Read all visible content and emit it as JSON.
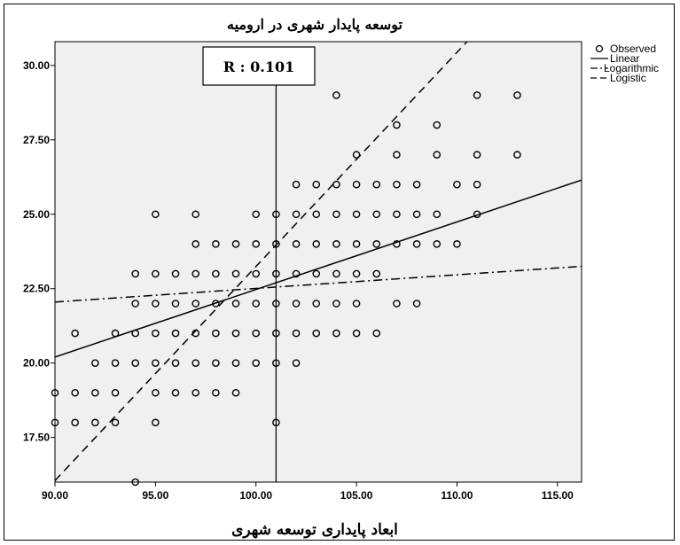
{
  "chart_data": {
    "type": "scatter",
    "title": "توسعه پایدار شهری در ارومیه",
    "xlabel": "ابعاد پایداری توسعه شهری",
    "ylabel": "",
    "xlim": [
      90,
      116.2
    ],
    "ylim": [
      16,
      30.8
    ],
    "x_ticks": [
      "90.00",
      "95.00",
      "100.00",
      "105.00",
      "110.00",
      "115.00"
    ],
    "y_ticks": [
      "17.50",
      "20.00",
      "22.50",
      "25.00",
      "27.50",
      "30.00"
    ],
    "grid": false,
    "background": "#f0f0f0",
    "annotation": {
      "text": "R : 0.101",
      "x": 101
    },
    "legend": {
      "position": "top-right",
      "entries": [
        {
          "label": "Observed",
          "marker": "circle"
        },
        {
          "label": "Linear",
          "line": "solid"
        },
        {
          "label": "Logarithmic",
          "line": "dashdot"
        },
        {
          "label": "Logistic",
          "line": "dashed"
        }
      ]
    },
    "observed": {
      "name": "Observed",
      "points": [
        [
          94,
          16
        ],
        [
          90,
          18
        ],
        [
          91,
          18
        ],
        [
          92,
          18
        ],
        [
          93,
          18
        ],
        [
          95,
          18
        ],
        [
          101,
          18
        ],
        [
          90,
          19
        ],
        [
          91,
          19
        ],
        [
          92,
          19
        ],
        [
          93,
          19
        ],
        [
          95,
          19
        ],
        [
          96,
          19
        ],
        [
          97,
          19
        ],
        [
          98,
          19
        ],
        [
          99,
          19
        ],
        [
          92,
          20
        ],
        [
          93,
          20
        ],
        [
          94,
          20
        ],
        [
          95,
          20
        ],
        [
          96,
          20
        ],
        [
          97,
          20
        ],
        [
          98,
          20
        ],
        [
          99,
          20
        ],
        [
          100,
          20
        ],
        [
          101,
          20
        ],
        [
          102,
          20
        ],
        [
          91,
          21
        ],
        [
          93,
          21
        ],
        [
          94,
          21
        ],
        [
          95,
          21
        ],
        [
          96,
          21
        ],
        [
          97,
          21
        ],
        [
          98,
          21
        ],
        [
          99,
          21
        ],
        [
          100,
          21
        ],
        [
          101,
          21
        ],
        [
          102,
          21
        ],
        [
          103,
          21
        ],
        [
          104,
          21
        ],
        [
          105,
          21
        ],
        [
          106,
          21
        ],
        [
          94,
          22
        ],
        [
          95,
          22
        ],
        [
          96,
          22
        ],
        [
          97,
          22
        ],
        [
          98,
          22
        ],
        [
          99,
          22
        ],
        [
          100,
          22
        ],
        [
          101,
          22
        ],
        [
          102,
          22
        ],
        [
          103,
          22
        ],
        [
          104,
          22
        ],
        [
          105,
          22
        ],
        [
          107,
          22
        ],
        [
          108,
          22
        ],
        [
          94,
          23
        ],
        [
          95,
          23
        ],
        [
          96,
          23
        ],
        [
          97,
          23
        ],
        [
          98,
          23
        ],
        [
          99,
          23
        ],
        [
          100,
          23
        ],
        [
          101,
          23
        ],
        [
          102,
          23
        ],
        [
          103,
          23
        ],
        [
          104,
          23
        ],
        [
          105,
          23
        ],
        [
          106,
          23
        ],
        [
          97,
          24
        ],
        [
          98,
          24
        ],
        [
          99,
          24
        ],
        [
          100,
          24
        ],
        [
          101,
          24
        ],
        [
          102,
          24
        ],
        [
          103,
          24
        ],
        [
          104,
          24
        ],
        [
          105,
          24
        ],
        [
          106,
          24
        ],
        [
          107,
          24
        ],
        [
          108,
          24
        ],
        [
          109,
          24
        ],
        [
          110,
          24
        ],
        [
          95,
          25
        ],
        [
          97,
          25
        ],
        [
          100,
          25
        ],
        [
          101,
          25
        ],
        [
          102,
          25
        ],
        [
          103,
          25
        ],
        [
          104,
          25
        ],
        [
          105,
          25
        ],
        [
          106,
          25
        ],
        [
          107,
          25
        ],
        [
          108,
          25
        ],
        [
          109,
          25
        ],
        [
          111,
          25
        ],
        [
          102,
          26
        ],
        [
          103,
          26
        ],
        [
          104,
          26
        ],
        [
          105,
          26
        ],
        [
          106,
          26
        ],
        [
          107,
          26
        ],
        [
          108,
          26
        ],
        [
          110,
          26
        ],
        [
          111,
          26
        ],
        [
          105,
          27
        ],
        [
          107,
          27
        ],
        [
          109,
          27
        ],
        [
          111,
          27
        ],
        [
          113,
          27
        ],
        [
          107,
          28
        ],
        [
          109,
          28
        ],
        [
          104,
          29
        ],
        [
          111,
          29
        ],
        [
          113,
          29
        ]
      ]
    },
    "fits": [
      {
        "name": "Linear",
        "style": "solid",
        "points": [
          [
            90,
            20.2
          ],
          [
            116.2,
            26.15
          ]
        ]
      },
      {
        "name": "Logarithmic",
        "style": "dashdot",
        "points": [
          [
            90,
            22.05
          ],
          [
            116.2,
            23.25
          ]
        ]
      },
      {
        "name": "Logistic",
        "style": "dashed",
        "points": [
          [
            90,
            16.05
          ],
          [
            110.5,
            30.8
          ]
        ]
      }
    ]
  }
}
